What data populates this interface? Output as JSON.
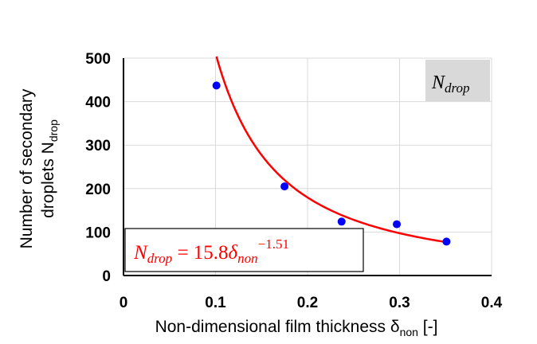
{
  "chart_data": {
    "type": "scatter",
    "xlabel": {
      "main": "Non-dimensional film thickness δ",
      "sub": "non",
      "suffix": " [-]"
    },
    "ylabel": {
      "line1": "Number of secondary",
      "line2_main": "droplets N",
      "line2_sub": "drop"
    },
    "xlim": [
      0,
      0.4
    ],
    "ylim": [
      0,
      500
    ],
    "xticks": [
      "0",
      "0.1",
      "0.2",
      "0.3",
      "0.4"
    ],
    "yticks": [
      "0",
      "100",
      "200",
      "300",
      "400",
      "500"
    ],
    "grid": true,
    "series": [
      {
        "points": [
          {
            "x": 0.101,
            "y": 437
          },
          {
            "x": 0.175,
            "y": 205
          },
          {
            "x": 0.237,
            "y": 124
          },
          {
            "x": 0.297,
            "y": 118
          },
          {
            "x": 0.351,
            "y": 78
          }
        ],
        "color": "#0000ff"
      }
    ],
    "fit": {
      "coef": 15.8,
      "exponent": -1.51,
      "x_range": [
        0.101,
        0.351
      ],
      "color": "#ff0000",
      "equation": {
        "lhs_main": "N",
        "lhs_sub": "drop",
        "eq": " = 15.8",
        "var_main": "δ",
        "var_sub": "non",
        "exp": "−1.51"
      }
    },
    "annotation": {
      "main": "N",
      "sub": "drop",
      "bg": "#d9d9d9"
    }
  }
}
